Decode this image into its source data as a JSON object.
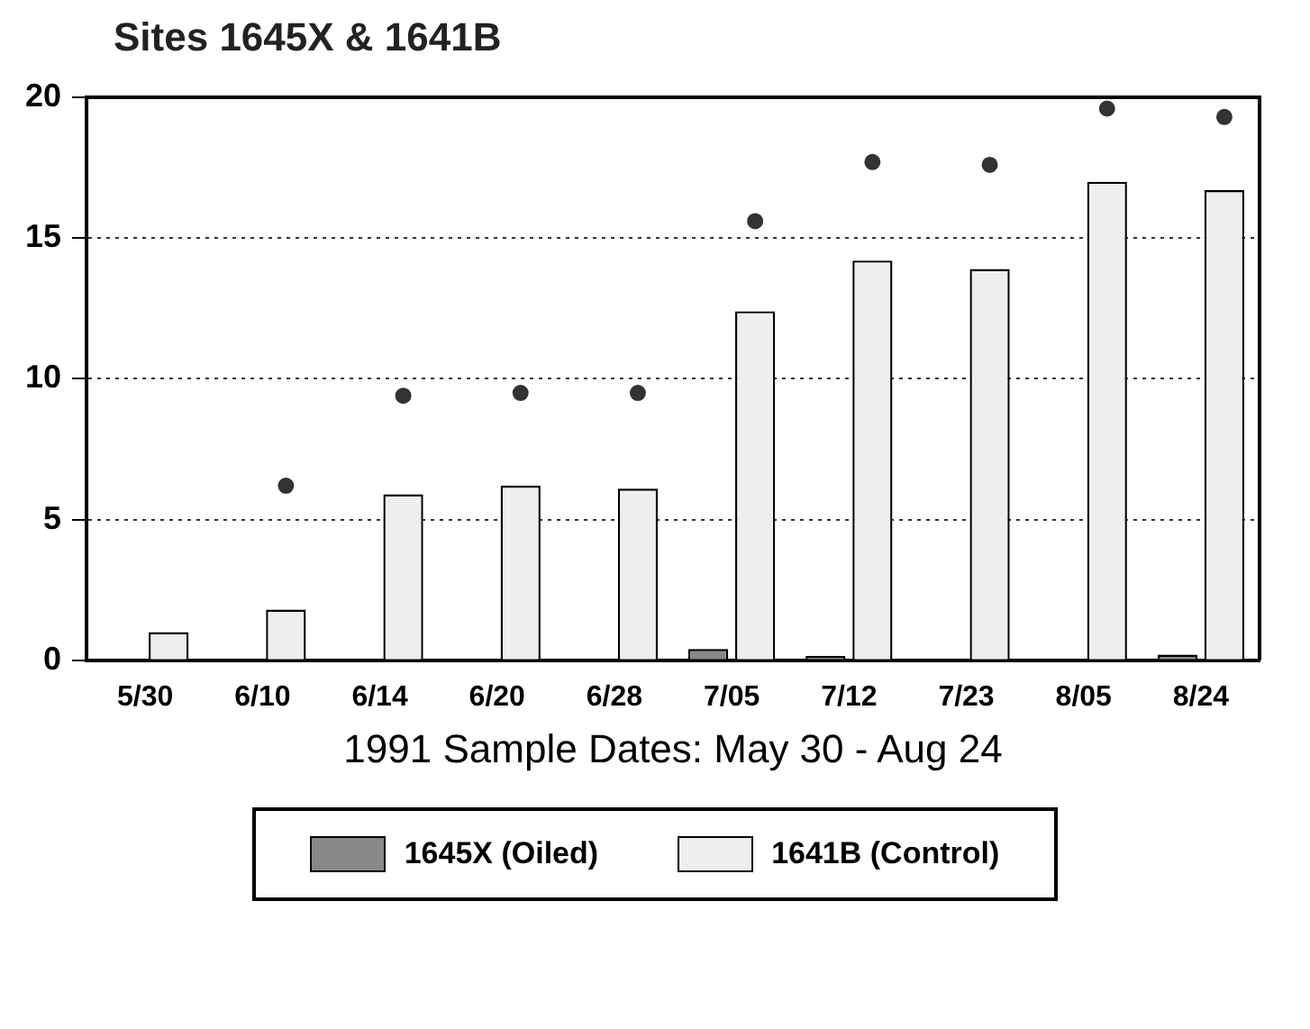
{
  "chart_data": {
    "type": "bar",
    "title": "Sites 1645X & 1641B",
    "xlabel": "1991 Sample Dates: May 30 - Aug 24",
    "categories": [
      "5/30",
      "6/10",
      "6/14",
      "6/20",
      "6/28",
      "7/05",
      "7/12",
      "7/23",
      "8/05",
      "8/24"
    ],
    "series": [
      {
        "name": "1645X (Oiled)",
        "color": "#888888",
        "values": [
          null,
          null,
          null,
          null,
          null,
          0.4,
          0.15,
          null,
          null,
          0.2
        ]
      },
      {
        "name": "1641B (Control)",
        "color": "#eeeeee",
        "values": [
          1.0,
          1.8,
          5.9,
          6.2,
          6.1,
          12.4,
          14.2,
          13.9,
          17.0,
          16.7
        ]
      },
      {
        "type": "scatter",
        "color": "#333333",
        "marker": "circle",
        "x": [
          "5/30",
          "6/10",
          "6/14",
          "6/20",
          "6/28",
          "7/05",
          "7/12",
          "7/23",
          "8/05",
          "8/24"
        ],
        "values": [
          null,
          6.2,
          9.4,
          9.5,
          9.5,
          15.6,
          17.7,
          17.6,
          19.6,
          19.3
        ]
      }
    ],
    "ylim": [
      0,
      20
    ],
    "yticks": [
      0,
      5,
      10,
      15,
      20
    ],
    "grid": "y",
    "legend": "bottom"
  }
}
